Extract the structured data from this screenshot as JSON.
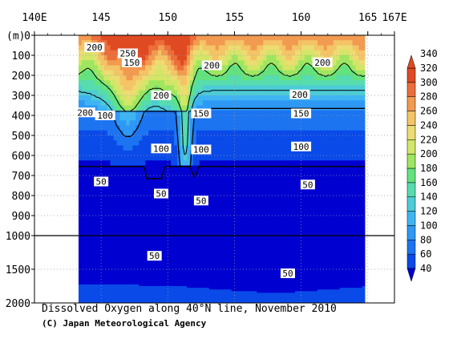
{
  "chart_data": {
    "type": "heatmap",
    "title": "Dissolved Oxygen along 40°N line, November 2010",
    "credit": "(C) Japan Meteorological Agency",
    "ylabel": "(m)",
    "x_ticks": [
      {
        "value": 140,
        "label": "140E"
      },
      {
        "value": 145,
        "label": "145"
      },
      {
        "value": 150,
        "label": "150"
      },
      {
        "value": 155,
        "label": "155"
      },
      {
        "value": 160,
        "label": "160"
      },
      {
        "value": 165,
        "label": "165"
      },
      {
        "value": 167,
        "label": "167E"
      }
    ],
    "xlim": [
      140,
      167
    ],
    "y_upper_ticks": [
      0,
      100,
      200,
      300,
      400,
      500,
      600,
      700,
      800,
      900,
      1000
    ],
    "y_lower_ticks": [
      1000,
      1500,
      2000
    ],
    "ylim": [
      0,
      2000
    ],
    "data_extent_x": [
      143.3,
      164.8
    ],
    "colorbar": {
      "levels": [
        40,
        60,
        80,
        100,
        120,
        140,
        160,
        180,
        200,
        220,
        240,
        260,
        280,
        300,
        320,
        340
      ],
      "colors": [
        "#0000d0",
        "#0a4ae8",
        "#1c74f0",
        "#2e98f5",
        "#3eb5f2",
        "#4cccd6",
        "#56dcae",
        "#62e37e",
        "#9ee660",
        "#d2e668",
        "#ecdc72",
        "#f4c466",
        "#f29a50",
        "#ec6e3a",
        "#e04a22"
      ]
    },
    "contour_labels": [
      {
        "x": 144.5,
        "depth": 60,
        "value": "200"
      },
      {
        "x": 147.0,
        "depth": 90,
        "value": "250"
      },
      {
        "x": 147.3,
        "depth": 135,
        "value": "150"
      },
      {
        "x": 149.5,
        "depth": 300,
        "value": "200"
      },
      {
        "x": 153.3,
        "depth": 150,
        "value": "200"
      },
      {
        "x": 161.6,
        "depth": 135,
        "value": "200"
      },
      {
        "x": 159.9,
        "depth": 295,
        "value": "200"
      },
      {
        "x": 143.8,
        "depth": 385,
        "value": "200"
      },
      {
        "x": 145.3,
        "depth": 400,
        "value": "100"
      },
      {
        "x": 152.5,
        "depth": 390,
        "value": "150"
      },
      {
        "x": 160.0,
        "depth": 390,
        "value": "150"
      },
      {
        "x": 149.5,
        "depth": 565,
        "value": "100"
      },
      {
        "x": 152.5,
        "depth": 570,
        "value": "100"
      },
      {
        "x": 160.0,
        "depth": 555,
        "value": "100"
      },
      {
        "x": 145.0,
        "depth": 730,
        "value": "50"
      },
      {
        "x": 149.5,
        "depth": 790,
        "value": "50"
      },
      {
        "x": 152.5,
        "depth": 825,
        "value": "50"
      },
      {
        "x": 160.5,
        "depth": 745,
        "value": "50"
      },
      {
        "x": 149.0,
        "depth": 1300,
        "value": "50"
      },
      {
        "x": 159.0,
        "depth": 1560,
        "value": "50"
      }
    ],
    "legend_position": "right",
    "grid": true
  }
}
